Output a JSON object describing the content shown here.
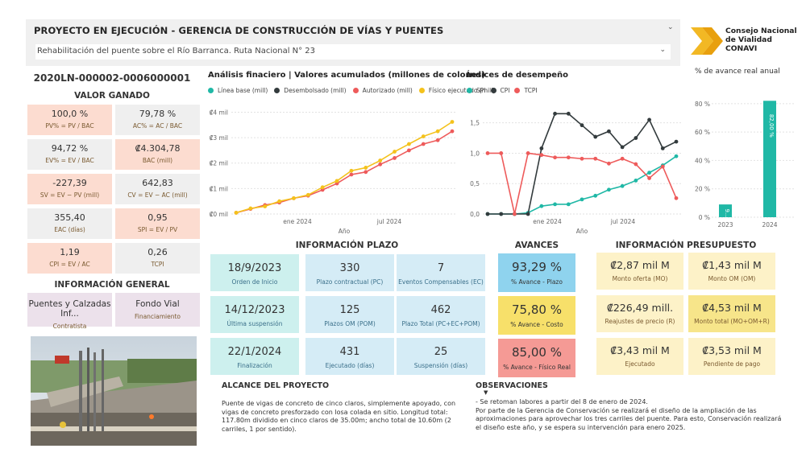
{
  "header": {
    "title": "PROYECTO EN EJECUCIÓN - GERENCIA DE CONSTRUCCIÓN DE VÍAS Y PUENTES",
    "project": "Rehabilitación del puente sobre el Río Barranca. Ruta Nacional N° 23"
  },
  "logo": {
    "line1": "Consejo Nacional",
    "line2": "de Vialidad",
    "line3": "CONAVI"
  },
  "left": {
    "code": "2020LN-000002-0006000001",
    "valor_title": "VALOR GANADO",
    "kpis": [
      {
        "value": "100,0 %",
        "label": "PV% = PV / BAC"
      },
      {
        "value": "79,78 %",
        "label": "AC% = AC / BAC"
      },
      {
        "value": "94,72 %",
        "label": "EV% = EV / BAC"
      },
      {
        "value": "₡4.304,78",
        "label": "BAC (mill)"
      },
      {
        "value": "-227,39",
        "label": "SV = EV − PV (mill)"
      },
      {
        "value": "642,83",
        "label": "CV = EV − AC (mill)"
      },
      {
        "value": "355,40",
        "label": "EAC (días)"
      },
      {
        "value": "0,95",
        "label": "SPI = EV / PV"
      },
      {
        "value": "1,19",
        "label": "CPI = EV / AC"
      },
      {
        "value": "0,26",
        "label": "TCPI"
      }
    ],
    "general_title": "INFORMACIÓN GENERAL",
    "general": [
      {
        "value": "Puentes y Calzadas Inf...",
        "label": "Contratista"
      },
      {
        "value": "Fondo Vial",
        "label": "Financiamiento"
      }
    ]
  },
  "finance_chart_title": "Análisis finaciero | Valores acumulados (millones de colones)",
  "indices_chart_title": "Índices de desempeño",
  "annual_chart_title": "% de avance real anual",
  "chart_data": [
    {
      "type": "line",
      "title": "Análisis finaciero | Valores acumulados (millones de colones)",
      "xlabel": "Año",
      "x_ticks": [
        "ene 2024",
        "jul 2024"
      ],
      "y_ticks": [
        "₡0 mil",
        "₡1 mil",
        "₡2 mil",
        "₡3 mil",
        "₡4 mil"
      ],
      "ylim": [
        0,
        4.3
      ],
      "legend": [
        "Línea base (mill)",
        "Desembolsado (mill)",
        "Autorizado (mill)",
        "Físico ejecutado (mill)"
      ],
      "colors": [
        "#20b8a6",
        "#333b3d",
        "#ee5b5b",
        "#f4c21c"
      ],
      "series": [
        {
          "name": "Autorizado (mill)",
          "values": [
            0.05,
            0.2,
            0.35,
            0.45,
            0.62,
            0.72,
            0.95,
            1.2,
            1.55,
            1.65,
            1.95,
            2.2,
            2.5,
            2.75,
            2.9,
            3.25
          ]
        },
        {
          "name": "Físico ejecutado (mill)",
          "values": [
            0.05,
            0.22,
            0.3,
            0.5,
            0.62,
            0.75,
            1.05,
            1.3,
            1.7,
            1.82,
            2.1,
            2.45,
            2.75,
            3.05,
            3.25,
            3.62
          ]
        }
      ]
    },
    {
      "type": "line",
      "title": "Índices de desempeño",
      "xlabel": "Año",
      "x_ticks": [
        "ene 2024",
        "jul 2024"
      ],
      "y_ticks": [
        "0,0",
        "0,5",
        "1,0",
        "1,5"
      ],
      "ylim": [
        0,
        1.8
      ],
      "legend": [
        "SPI",
        "CPI",
        "TCPI"
      ],
      "colors": [
        "#20b8a6",
        "#333b3d",
        "#ee5b5b"
      ],
      "series": [
        {
          "name": "SPI",
          "values": [
            0,
            0,
            0,
            0.02,
            0.13,
            0.16,
            0.16,
            0.24,
            0.3,
            0.4,
            0.46,
            0.55,
            0.68,
            0.8,
            0.95
          ]
        },
        {
          "name": "CPI",
          "values": [
            0,
            0,
            0,
            0,
            1.08,
            1.65,
            1.65,
            1.46,
            1.27,
            1.36,
            1.1,
            1.25,
            1.55,
            1.08,
            1.19
          ]
        },
        {
          "name": "TCPI",
          "values": [
            1.0,
            1.0,
            0,
            1.0,
            0.97,
            0.93,
            0.93,
            0.91,
            0.91,
            0.83,
            0.91,
            0.82,
            0.59,
            0.78,
            0.26
          ]
        }
      ]
    },
    {
      "type": "bar",
      "title": "% de avance real anual",
      "categories": [
        "2023",
        "2024"
      ],
      "values": [
        9,
        82
      ],
      "value_labels": [
        "9...",
        "82,00 %"
      ],
      "y_ticks": [
        "0 %",
        "20 %",
        "40 %",
        "60 %",
        "80 %"
      ],
      "ylim": [
        0,
        85
      ],
      "color": "#20b8a6"
    }
  ],
  "plazo": {
    "title": "INFORMACIÓN PLAZO",
    "cards": [
      {
        "value": "18/9/2023",
        "label": "Orden de Inicio"
      },
      {
        "value": "330",
        "label": "Plazo contractual (PC)"
      },
      {
        "value": "7",
        "label": "Eventos Compensables (EC)"
      },
      {
        "value": "14/12/2023",
        "label": "Última suspensión"
      },
      {
        "value": "125",
        "label": "Plazos OM (POM)"
      },
      {
        "value": "462",
        "label": "Plazo Total (PC+EC+POM)"
      },
      {
        "value": "22/1/2024",
        "label": "Finalización"
      },
      {
        "value": "431",
        "label": "Ejecutado (días)"
      },
      {
        "value": "25",
        "label": "Suspensión (días)"
      }
    ]
  },
  "avances": {
    "title": "AVANCES",
    "cards": [
      {
        "value": "93,29 %",
        "label": "% Avance - Plazo",
        "color": "#8fd3ee"
      },
      {
        "value": "75,80 %",
        "label": "% Avance - Costo",
        "color": "#f7e06a"
      },
      {
        "value": "85,00 %",
        "label": "% Avance - Físico Real",
        "color": "#f59a95"
      }
    ]
  },
  "presupuesto": {
    "title": "INFORMACIÓN PRESUPUESTO",
    "cards": [
      {
        "value": "₡2,87 mil M",
        "label": "Monto oferta (MO)"
      },
      {
        "value": "₡1,43 mil M",
        "label": "Monto OM (OM)"
      },
      {
        "value": "₡226,49 mill.",
        "label": "Reajustes de precio (R)"
      },
      {
        "value": "₡4,53 mil M",
        "label": "Monto total (MO+OM+R)"
      },
      {
        "value": "₡3,43 mil M",
        "label": "Ejecutado"
      },
      {
        "value": "₡3,53 mil M",
        "label": "Pendiente de pago"
      }
    ]
  },
  "alcance": {
    "title": "ALCANCE DEL PROYECTO",
    "text": "Puente de vigas de concreto de cinco claros, simplemente apoyado, con vigas de concreto presforzado con losa colada en sitio. Longitud total: 117.80m dividido en cinco claros de 35.00m; ancho total de 10.60m (2 carriles, 1 por sentido)."
  },
  "observaciones": {
    "title": "OBSERVACIONES",
    "text": "- Se retoman labores a partir del 8 de enero de 2024.\nPor parte de la Gerencia de Conservación se realizará el diseño de la ampliación de las aproximaciones para aprovechar los tres carriles del puente. Para esto, Conservación realizará el diseño este año, y se espera su intervención para enero 2025."
  }
}
